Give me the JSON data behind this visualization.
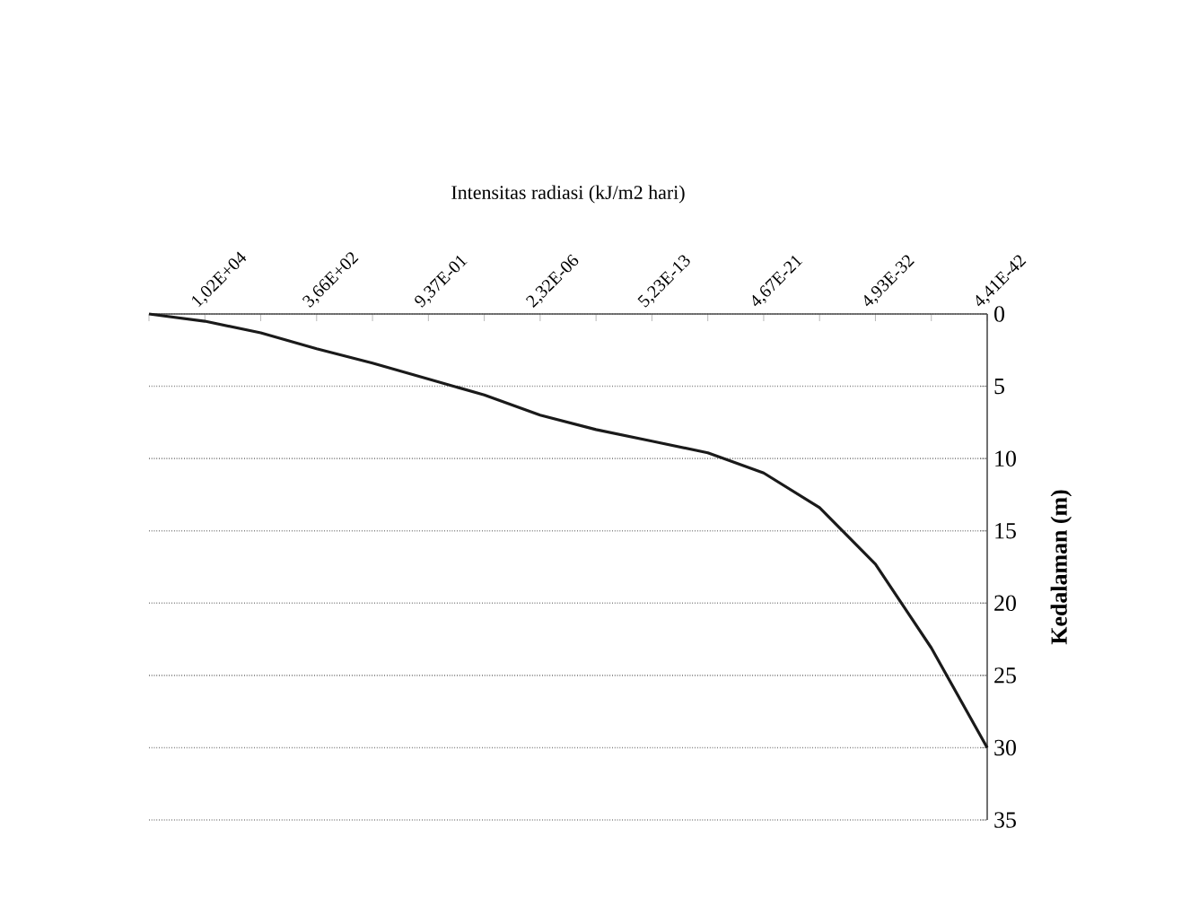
{
  "chart_data": {
    "type": "line",
    "xlabel": "Intensitas radiasi (kJ/m2 hari)",
    "ylabel": "Kedalaman (m)",
    "categories": [
      null,
      "1,02E+04",
      null,
      "3,66E+02",
      null,
      "9,37E-01",
      null,
      "2,32E-06",
      null,
      "5,23E-13",
      null,
      "4,67E-21",
      null,
      "4,93E-32",
      null,
      "4,41E-42"
    ],
    "series": [
      {
        "color": "#1a1a1a",
        "values": [
          0,
          0.5,
          1.3,
          2.4,
          3.4,
          4.5,
          5.6,
          7,
          8,
          8.8,
          9.6,
          11,
          13.4,
          17.3,
          23.1,
          30
        ]
      }
    ],
    "ylim": [
      35,
      0
    ],
    "yticks": [
      0,
      5,
      10,
      15,
      20,
      25,
      30,
      35
    ],
    "grid": "y",
    "marker": "none",
    "line_style": "solid"
  }
}
